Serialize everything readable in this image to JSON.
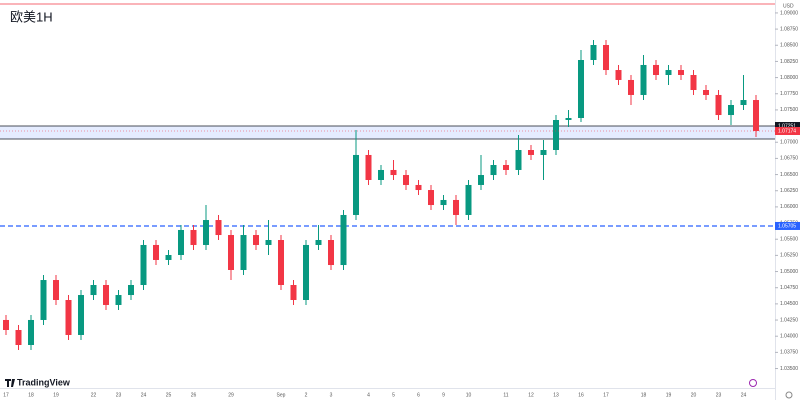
{
  "chart_data": {
    "type": "candlestick",
    "title": "欧美1H",
    "currency": "USD",
    "brand": "TradingView",
    "grid": false,
    "up_color": "#089981",
    "down_color": "#f23645",
    "categories": [
      "17",
      null,
      "18",
      null,
      "19",
      null,
      null,
      "22",
      null,
      "23",
      null,
      "24",
      null,
      "25",
      null,
      "26",
      null,
      null,
      "29",
      null,
      null,
      null,
      "Sep",
      null,
      "2",
      null,
      "3",
      null,
      null,
      "4",
      null,
      "5",
      null,
      "6",
      null,
      "9",
      null,
      "10",
      null,
      null,
      "11",
      null,
      "12",
      null,
      "13",
      null,
      "16",
      null,
      "17",
      null,
      null,
      "18",
      null,
      "19",
      null,
      "20",
      null,
      "23",
      null,
      "24",
      null
    ],
    "open": [
      1.04251,
      1.04096,
      1.03864,
      1.04251,
      1.04869,
      1.0456,
      1.04019,
      1.04637,
      1.04792,
      1.04483,
      1.04637,
      1.04792,
      1.05411,
      1.05179,
      1.05256,
      1.05643,
      1.05411,
      1.05797,
      1.05565,
      1.05024,
      1.05565,
      1.05411,
      1.05488,
      1.04792,
      1.0456,
      1.05411,
      1.05488,
      1.05101,
      1.05875,
      1.06803,
      1.06416,
      1.06571,
      1.06493,
      1.06339,
      1.06261,
      1.06029,
      1.06107,
      1.05875,
      1.06339,
      1.06493,
      1.06648,
      1.06571,
      1.0688,
      1.06803,
      1.0688,
      1.07344,
      1.07375,
      1.08272,
      1.08504,
      1.08117,
      1.07963,
      1.07731,
      1.08195,
      1.0804,
      1.08117,
      1.0804,
      1.07808,
      1.07731,
      1.07421,
      1.07576,
      1.07653
    ],
    "high": [
      1.04328,
      1.04173,
      1.04328,
      1.04947,
      1.04947,
      1.04637,
      1.04715,
      1.04869,
      1.04869,
      1.04715,
      1.04869,
      1.05488,
      1.05488,
      1.05333,
      1.0572,
      1.0572,
      1.06029,
      1.05875,
      1.05643,
      1.0572,
      1.05643,
      1.05797,
      1.05565,
      1.04869,
      1.05488,
      1.0572,
      1.05565,
      1.05952,
      1.07189,
      1.0688,
      1.06648,
      1.06725,
      1.06571,
      1.06416,
      1.06339,
      1.06184,
      1.06184,
      1.06416,
      1.06803,
      1.06725,
      1.06725,
      1.07112,
      1.06957,
      1.07035,
      1.07421,
      1.07499,
      1.08427,
      1.08581,
      1.08581,
      1.08195,
      1.0804,
      1.08349,
      1.08272,
      1.08195,
      1.08195,
      1.08117,
      1.07885,
      1.07808,
      1.07653,
      1.0804,
      1.07731
    ],
    "low": [
      1.04019,
      1.03787,
      1.03787,
      1.04173,
      1.04483,
      1.03941,
      1.03941,
      1.0456,
      1.04405,
      1.04405,
      1.0456,
      1.04715,
      1.05101,
      1.05101,
      1.05179,
      1.05333,
      1.05333,
      1.05488,
      1.04869,
      1.04947,
      1.05333,
      1.05256,
      1.04715,
      1.04483,
      1.04483,
      1.05333,
      1.05024,
      1.05024,
      1.05797,
      1.06339,
      1.06339,
      1.06416,
      1.06261,
      1.06184,
      1.05952,
      1.05952,
      1.0572,
      1.05797,
      1.06261,
      1.06416,
      1.06493,
      1.06493,
      1.06725,
      1.06416,
      1.06803,
      1.07236,
      1.07313,
      1.08195,
      1.0804,
      1.07885,
      1.07576,
      1.07653,
      1.07963,
      1.07885,
      1.07963,
      1.07731,
      1.07653,
      1.07344,
      1.07267,
      1.07499,
      1.07081
    ],
    "close": [
      1.04096,
      1.03864,
      1.04251,
      1.04869,
      1.0456,
      1.04019,
      1.04637,
      1.04792,
      1.04483,
      1.04637,
      1.04792,
      1.05411,
      1.05179,
      1.05256,
      1.05643,
      1.05411,
      1.05797,
      1.05565,
      1.05024,
      1.05565,
      1.05411,
      1.05488,
      1.04792,
      1.0456,
      1.05411,
      1.05488,
      1.05101,
      1.05875,
      1.06803,
      1.06416,
      1.06571,
      1.06493,
      1.06339,
      1.06261,
      1.06029,
      1.06107,
      1.05875,
      1.06339,
      1.06493,
      1.06648,
      1.06571,
      1.0688,
      1.06803,
      1.0688,
      1.07344,
      1.07375,
      1.08272,
      1.08504,
      1.08117,
      1.07963,
      1.07731,
      1.08195,
      1.0804,
      1.08117,
      1.0804,
      1.07808,
      1.07731,
      1.07421,
      1.07576,
      1.07653,
      1.07174
    ],
    "ylim": [
      1.034,
      1.092
    ],
    "yticks": [
      {
        "value": 1.035,
        "label": "1.03500"
      },
      {
        "value": 1.0375,
        "label": "1.03750"
      },
      {
        "value": 1.04,
        "label": "1.04000"
      },
      {
        "value": 1.0425,
        "label": "1.04250"
      },
      {
        "value": 1.045,
        "label": "1.04500"
      },
      {
        "value": 1.0475,
        "label": "1.04750"
      },
      {
        "value": 1.05,
        "label": "1.05000"
      },
      {
        "value": 1.0525,
        "label": "1.05250"
      },
      {
        "value": 1.055,
        "label": "1.05500"
      },
      {
        "value": 1.0575,
        "label": "1.05750"
      },
      {
        "value": 1.06,
        "label": "1.06000"
      },
      {
        "value": 1.0625,
        "label": "1.06250"
      },
      {
        "value": 1.065,
        "label": "1.06500"
      },
      {
        "value": 1.0675,
        "label": "1.06750"
      },
      {
        "value": 1.07,
        "label": "1.07000"
      },
      {
        "value": 1.0725,
        "label": "1.07250"
      },
      {
        "value": 1.075,
        "label": "1.07500"
      },
      {
        "value": 1.0775,
        "label": "1.07750"
      },
      {
        "value": 1.08,
        "label": "1.08000"
      },
      {
        "value": 1.0825,
        "label": "1.08250"
      },
      {
        "value": 1.085,
        "label": "1.08500"
      },
      {
        "value": 1.0875,
        "label": "1.08750"
      },
      {
        "value": 1.09,
        "label": "1.09000"
      }
    ],
    "zone": {
      "top": 1.07251,
      "bottom": 1.0705,
      "color": "#2962ff"
    },
    "level": {
      "value": 1.05705,
      "color": "#2962ff"
    },
    "top_line": {
      "value": 1.09138,
      "color": "#f23645"
    },
    "last_price": 1.07174
  }
}
